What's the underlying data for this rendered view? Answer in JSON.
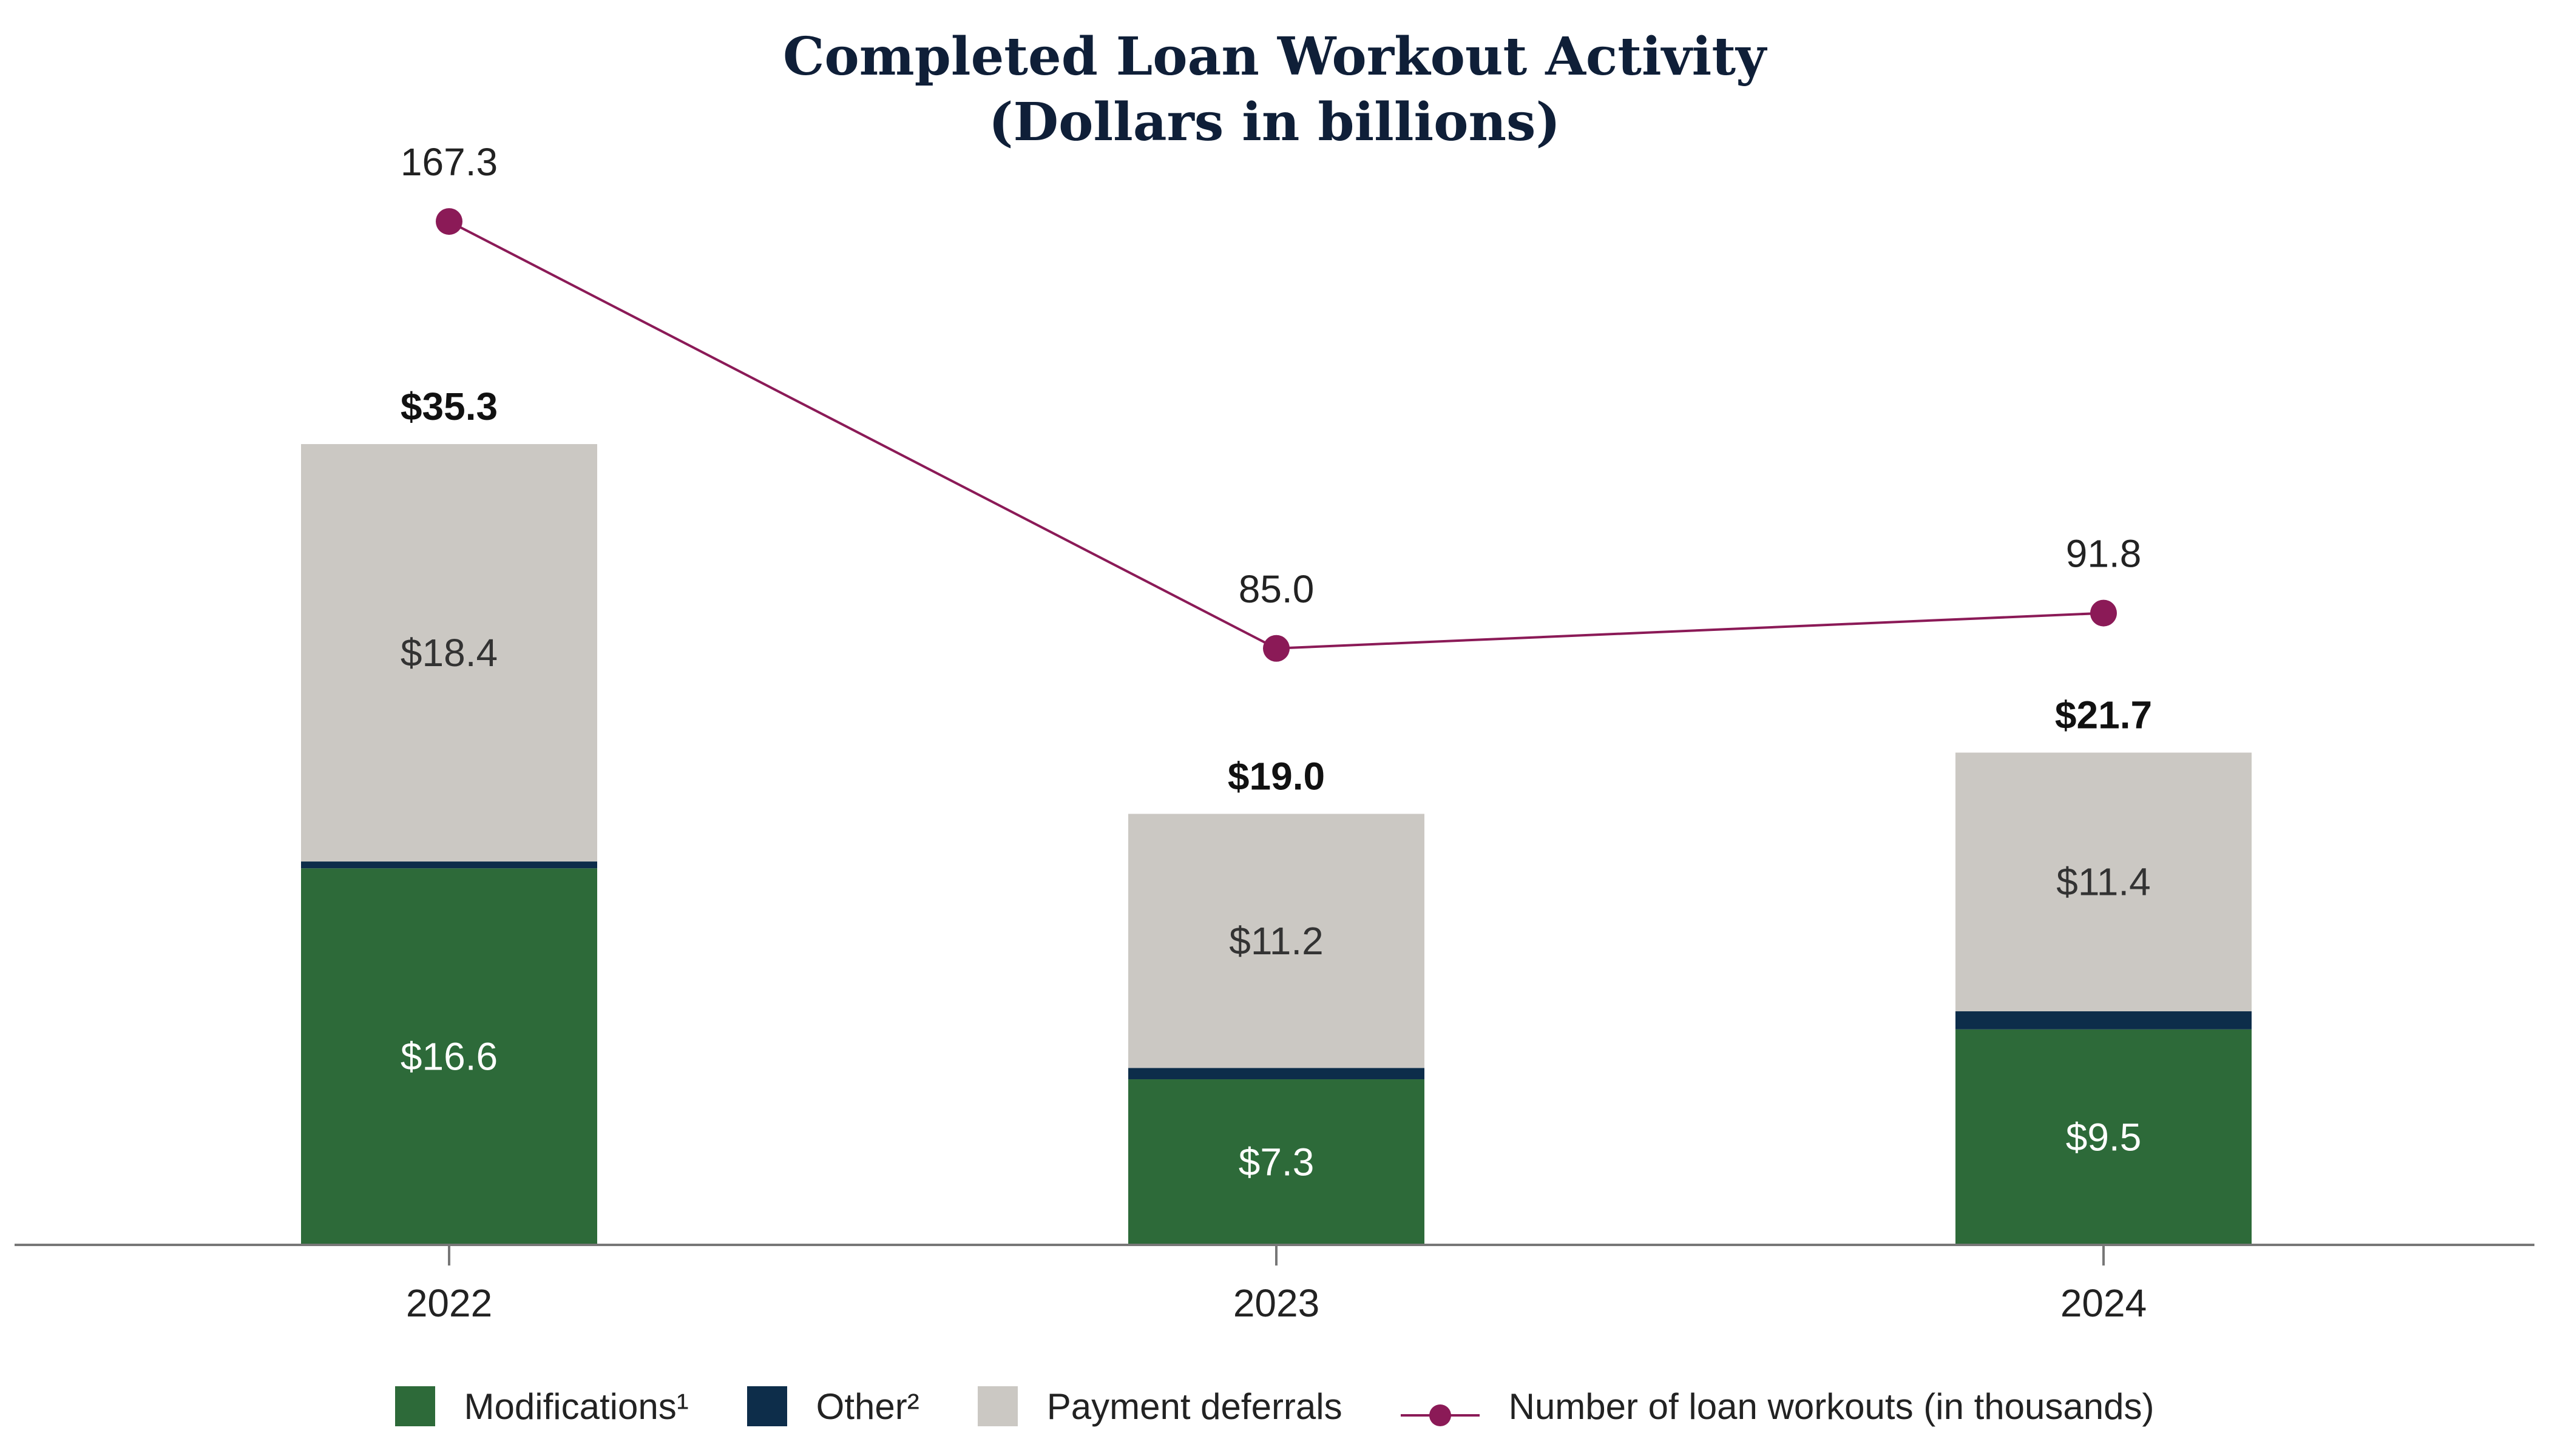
{
  "title_lines": [
    "Completed Loan Workout Activity",
    "(Dollars in billions)"
  ],
  "chart_data": {
    "type": "bar",
    "stacked": true,
    "categories": [
      "2022",
      "2023",
      "2024"
    ],
    "series": [
      {
        "name": "Modifications¹",
        "values": [
          16.6,
          7.3,
          9.5
        ],
        "color": "#2d6a39",
        "labels": [
          "$16.6",
          "$7.3",
          "$9.5"
        ],
        "label_color": "#ffffff"
      },
      {
        "name": "Other²",
        "values": [
          0.3,
          0.5,
          0.8
        ],
        "color": "#0d2d4a"
      },
      {
        "name": "Payment deferrals",
        "values": [
          18.4,
          11.2,
          11.4
        ],
        "color": "#cbc8c3",
        "labels": [
          "$18.4",
          "$11.2",
          "$11.4"
        ],
        "label_color": "#333333"
      }
    ],
    "totals": [
      35.3,
      19.0,
      21.7
    ],
    "total_labels": [
      "$35.3",
      "$19.0",
      "$21.7"
    ],
    "line_series": {
      "name": "Number of loan workouts (in thousands)",
      "values": [
        167.3,
        85.0,
        91.8
      ],
      "labels": [
        "167.3",
        "85.0",
        "91.8"
      ],
      "color": "#8b1a57",
      "axis_range": [
        -30,
        210
      ]
    },
    "ylim": [
      0,
      45
    ],
    "xlabel": "",
    "ylabel": "",
    "legend_position": "bottom"
  },
  "legend": {
    "modifications": "Modifications¹",
    "other": "Other²",
    "deferrals": "Payment deferrals",
    "workouts": "Number of loan workouts (in thousands)"
  }
}
